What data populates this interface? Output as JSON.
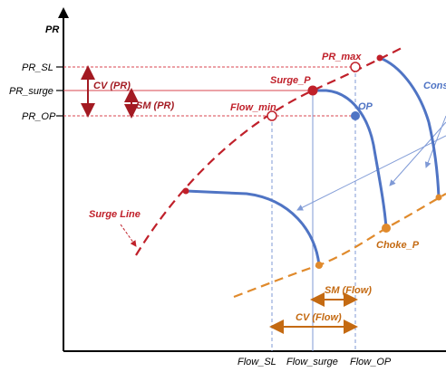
{
  "axes": {
    "y_label": "PR",
    "y_ticks": [
      "PR_SL",
      "PR_surge",
      "PR_OP"
    ],
    "x_ticks": [
      "Flow_SL",
      "Flow_surge",
      "Flow_OP"
    ]
  },
  "labels": {
    "pr_max": "PR_max",
    "surge_p": "Surge_P",
    "flow_min": "Flow_min",
    "op": "OP",
    "cons": "Cons",
    "surge_line": "Surge Line",
    "choke_p": "Choke_P",
    "cv_pr": "CV (PR)",
    "sm_pr": "SM (PR)",
    "sm_flow": "SM (Flow)",
    "cv_flow": "CV (Flow)"
  },
  "colors": {
    "surge_line": "#c0202a",
    "choke_line": "#e08a2c",
    "speed_curve": "#4f74c4",
    "guide_red": "#d9454f",
    "guide_blue": "#7f9ad6",
    "arrow_dark_red": "#a31a22",
    "arrow_orange": "#c46a12",
    "axis": "#000000"
  }
}
